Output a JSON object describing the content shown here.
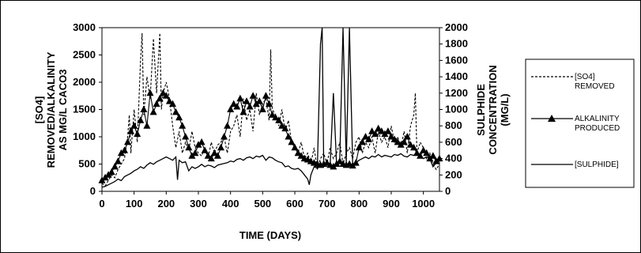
{
  "chart_data": {
    "type": "line",
    "xlabel": "TIME (DAYS)",
    "ylabel_left": [
      "[SO4]",
      "REMOVED/ALKALINITY",
      "AS MG/L CACO3"
    ],
    "ylabel_right": [
      "SULPHIDE",
      "CONCENTRATION",
      "(MG/L)"
    ],
    "xlim": [
      0,
      1050
    ],
    "ylim_left": [
      0,
      3000
    ],
    "ylim_right": [
      0,
      2000
    ],
    "x_ticks": [
      "0",
      "100",
      "200",
      "300",
      "400",
      "500",
      "600",
      "700",
      "800",
      "900",
      "1000"
    ],
    "y_left_ticks": [
      "0",
      "500",
      "1000",
      "1500",
      "2000",
      "2500",
      "3000"
    ],
    "y_right_ticks": [
      "0",
      "200",
      "400",
      "600",
      "800",
      "1000",
      "1200",
      "1400",
      "1600",
      "1800",
      "2000"
    ],
    "grid": false,
    "legend_position": "right",
    "series": [
      {
        "name": "[SO4] REMOVED",
        "axis": "left",
        "style": "dashed",
        "x": [
          0,
          10,
          20,
          30,
          40,
          50,
          60,
          70,
          80,
          85,
          90,
          100,
          110,
          120,
          125,
          130,
          140,
          150,
          160,
          170,
          180,
          185,
          190,
          200,
          210,
          220,
          230,
          240,
          250,
          260,
          270,
          280,
          290,
          300,
          310,
          320,
          330,
          340,
          350,
          360,
          370,
          380,
          390,
          400,
          410,
          420,
          430,
          440,
          450,
          460,
          470,
          480,
          490,
          500,
          510,
          520,
          525,
          530,
          540,
          550,
          560,
          570,
          580,
          590,
          600,
          610,
          620,
          630,
          640,
          650,
          660,
          670,
          680,
          690,
          700,
          710,
          720,
          730,
          740,
          750,
          760,
          770,
          780,
          790,
          800,
          810,
          820,
          830,
          840,
          850,
          860,
          870,
          880,
          890,
          900,
          910,
          920,
          930,
          940,
          950,
          960,
          970,
          975,
          980,
          990,
          1000,
          1010,
          1020,
          1030,
          1040,
          1050
        ],
        "y": [
          150,
          100,
          200,
          300,
          250,
          400,
          500,
          600,
          1000,
          1400,
          700,
          1500,
          900,
          2400,
          2900,
          1400,
          2100,
          1700,
          2800,
          1800,
          2900,
          1500,
          1800,
          2000,
          1700,
          1200,
          800,
          1100,
          700,
          900,
          750,
          1100,
          800,
          700,
          650,
          800,
          600,
          900,
          700,
          850,
          900,
          1000,
          700,
          1100,
          1200,
          1400,
          1000,
          1700,
          1300,
          1500,
          1100,
          1800,
          1400,
          1600,
          1700,
          1300,
          2600,
          1500,
          1400,
          1200,
          1500,
          1100,
          1300,
          900,
          800,
          700,
          900,
          600,
          700,
          500,
          800,
          400,
          600,
          700,
          500,
          800,
          600,
          700,
          900,
          500,
          700,
          800,
          600,
          900,
          1000,
          700,
          900,
          800,
          1000,
          700,
          1100,
          900,
          1000,
          800,
          1200,
          900,
          1000,
          800,
          1100,
          700,
          1200,
          1400,
          1800,
          700,
          900,
          800,
          600,
          700,
          500,
          400,
          500
        ]
      },
      {
        "name": "ALKALINITY PRODUCED",
        "axis": "left",
        "style": "line-triangle",
        "x": [
          0,
          10,
          20,
          30,
          40,
          50,
          60,
          70,
          80,
          90,
          100,
          110,
          120,
          130,
          140,
          150,
          160,
          170,
          180,
          190,
          200,
          210,
          220,
          230,
          240,
          250,
          260,
          270,
          280,
          290,
          300,
          310,
          320,
          330,
          340,
          350,
          360,
          370,
          380,
          390,
          400,
          410,
          420,
          430,
          440,
          450,
          460,
          470,
          480,
          490,
          500,
          510,
          520,
          530,
          540,
          550,
          560,
          570,
          580,
          590,
          600,
          610,
          620,
          630,
          640,
          650,
          660,
          670,
          680,
          690,
          700,
          710,
          720,
          730,
          740,
          750,
          760,
          770,
          780,
          790,
          800,
          810,
          820,
          830,
          840,
          850,
          860,
          870,
          880,
          890,
          900,
          910,
          920,
          930,
          940,
          950,
          960,
          970,
          980,
          990,
          1000,
          1010,
          1020,
          1030,
          1040,
          1050
        ],
        "y": [
          200,
          250,
          300,
          350,
          450,
          550,
          700,
          750,
          900,
          1100,
          1200,
          1050,
          1300,
          1500,
          1200,
          1800,
          1450,
          1600,
          1700,
          1800,
          1750,
          1650,
          1600,
          1450,
          1350,
          1200,
          1000,
          800,
          650,
          700,
          850,
          900,
          750,
          650,
          600,
          700,
          650,
          800,
          1000,
          1200,
          1500,
          1600,
          1550,
          1700,
          1450,
          1650,
          1550,
          1750,
          1600,
          1650,
          1500,
          1750,
          1600,
          1400,
          1350,
          1300,
          1200,
          1150,
          1000,
          900,
          800,
          700,
          650,
          600,
          580,
          550,
          520,
          500,
          480,
          500,
          520,
          480,
          450,
          500,
          550,
          500,
          480,
          500,
          470,
          520,
          800,
          900,
          1000,
          950,
          1100,
          1050,
          1150,
          1100,
          1050,
          1100,
          1000,
          950,
          900,
          850,
          900,
          1000,
          850,
          800,
          700,
          650,
          750,
          700,
          600,
          650,
          550,
          600
        ]
      },
      {
        "name": "[SULPHIDE]",
        "axis": "right",
        "style": "solid",
        "x": [
          0,
          10,
          20,
          30,
          40,
          50,
          60,
          70,
          80,
          90,
          100,
          110,
          120,
          130,
          140,
          150,
          160,
          170,
          180,
          190,
          200,
          210,
          220,
          230,
          235,
          240,
          250,
          260,
          270,
          280,
          290,
          300,
          310,
          320,
          330,
          340,
          350,
          360,
          370,
          380,
          390,
          400,
          410,
          420,
          430,
          440,
          450,
          460,
          470,
          480,
          490,
          500,
          510,
          520,
          530,
          540,
          550,
          560,
          570,
          580,
          590,
          600,
          610,
          620,
          630,
          640,
          645,
          650,
          660,
          670,
          680,
          685,
          690,
          700,
          710,
          720,
          730,
          740,
          750,
          760,
          770,
          780,
          790,
          800,
          810,
          820,
          830,
          840,
          850,
          860,
          870,
          880,
          890,
          900,
          910,
          920,
          930,
          940,
          950,
          960,
          970,
          980,
          990,
          1000,
          1010,
          1020,
          1030,
          1040,
          1050
        ],
        "y": [
          50,
          60,
          80,
          100,
          120,
          150,
          130,
          180,
          200,
          220,
          250,
          270,
          300,
          280,
          320,
          350,
          330,
          360,
          380,
          400,
          420,
          400,
          380,
          420,
          140,
          380,
          350,
          360,
          250,
          300,
          280,
          300,
          330,
          300,
          320,
          310,
          290,
          320,
          330,
          340,
          350,
          370,
          360,
          390,
          400,
          380,
          410,
          420,
          400,
          430,
          420,
          440,
          380,
          420,
          410,
          380,
          360,
          350,
          300,
          310,
          280,
          270,
          280,
          250,
          200,
          150,
          80,
          200,
          300,
          280,
          1800,
          2000,
          300,
          350,
          320,
          1200,
          320,
          400,
          2000,
          350,
          2000,
          330,
          350,
          380,
          400,
          420,
          400,
          430,
          420,
          450,
          420,
          440,
          430,
          420,
          450,
          440,
          460,
          430,
          420,
          450,
          440,
          460,
          430,
          400,
          420,
          400,
          300,
          350,
          380
        ]
      }
    ]
  }
}
